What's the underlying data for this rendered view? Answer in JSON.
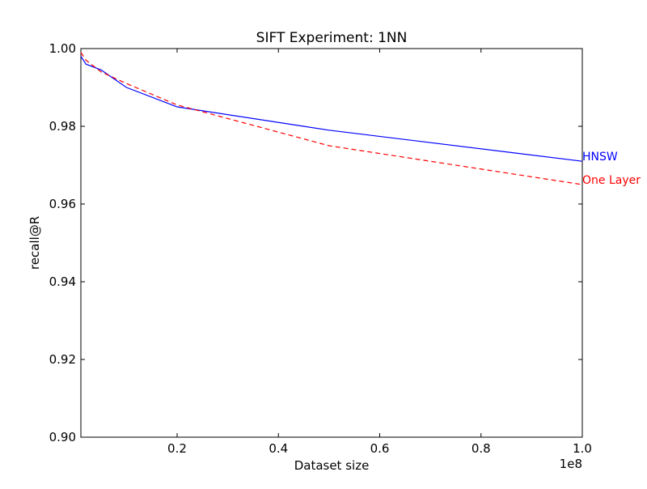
{
  "chart_data": {
    "type": "line",
    "title": "SIFT Experiment: 1NN",
    "xlabel": "Dataset size",
    "ylabel": "recall@R",
    "x_offset_label": "1e8",
    "xlim": [
      1000000,
      100000000
    ],
    "ylim": [
      0.9,
      1.0
    ],
    "x_ticks": [
      20000000,
      40000000,
      60000000,
      80000000,
      100000000
    ],
    "x_tick_labels": [
      "0.2",
      "0.4",
      "0.6",
      "0.8",
      "1.0"
    ],
    "y_ticks": [
      0.9,
      0.92,
      0.94,
      0.96,
      0.98,
      1.0
    ],
    "y_tick_labels": [
      "0.90",
      "0.92",
      "0.94",
      "0.96",
      "0.98",
      "1.00"
    ],
    "grid": false,
    "series": [
      {
        "name": "HNSW",
        "color": "#0000ff",
        "dash": "solid",
        "x": [
          1000000,
          2000000,
          5000000,
          10000000,
          20000000,
          50000000,
          100000000
        ],
        "y": [
          0.998,
          0.996,
          0.9945,
          0.99,
          0.985,
          0.979,
          0.971
        ]
      },
      {
        "name": "One Layer",
        "color": "#ff0000",
        "dash": "dashed",
        "x": [
          1000000,
          2000000,
          5000000,
          10000000,
          20000000,
          50000000,
          100000000
        ],
        "y": [
          0.999,
          0.997,
          0.994,
          0.991,
          0.9855,
          0.975,
          0.965
        ]
      }
    ]
  }
}
